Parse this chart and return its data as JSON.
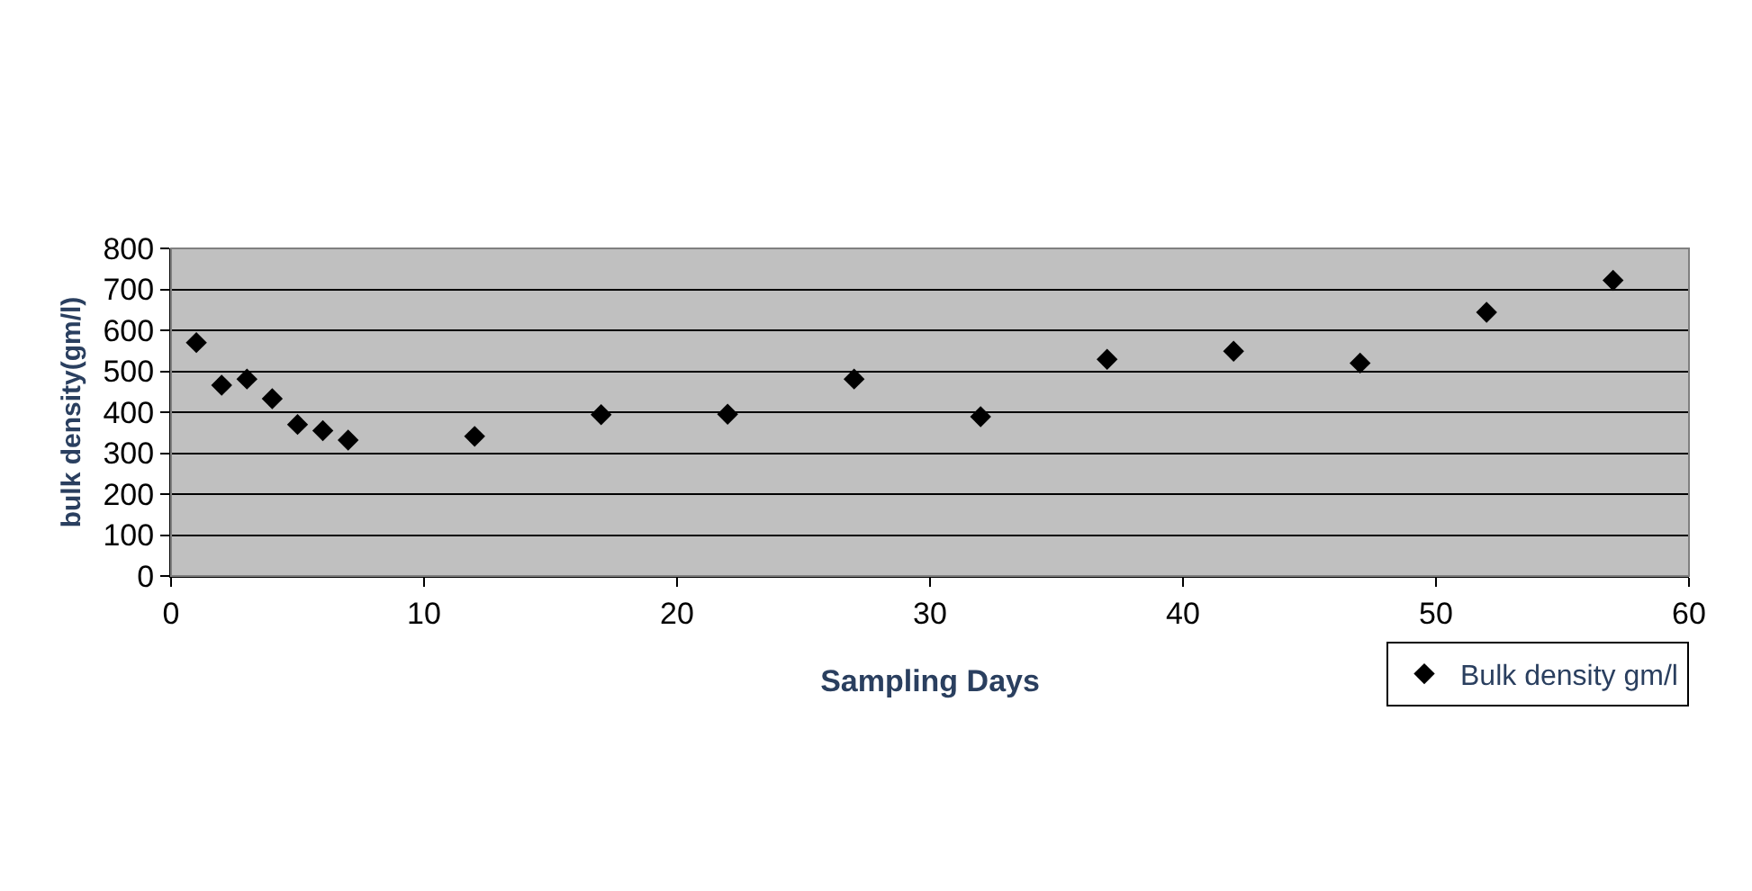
{
  "chart_data": {
    "type": "scatter",
    "xlabel": "Sampling Days",
    "ylabel": "bulk density(gm/l)",
    "x": [
      1,
      2,
      3,
      4,
      5,
      6,
      7,
      12,
      17,
      22,
      27,
      32,
      37,
      42,
      47,
      52,
      57
    ],
    "series": [
      {
        "name": "Bulk density gm/l",
        "color": "#000000",
        "values": [
          570,
          466,
          481,
          433,
          370,
          355,
          332,
          341,
          394,
          395,
          481,
          389,
          529,
          549,
          520,
          644,
          722
        ]
      }
    ],
    "xlim": [
      0,
      60
    ],
    "xticks": [
      0,
      10,
      20,
      30,
      40,
      50,
      60
    ],
    "ylim": [
      0,
      800
    ],
    "yticks": [
      0,
      100,
      200,
      300,
      400,
      500,
      600,
      700,
      800
    ],
    "grid": "y",
    "legend": "bottom right",
    "marker": "diamond"
  }
}
